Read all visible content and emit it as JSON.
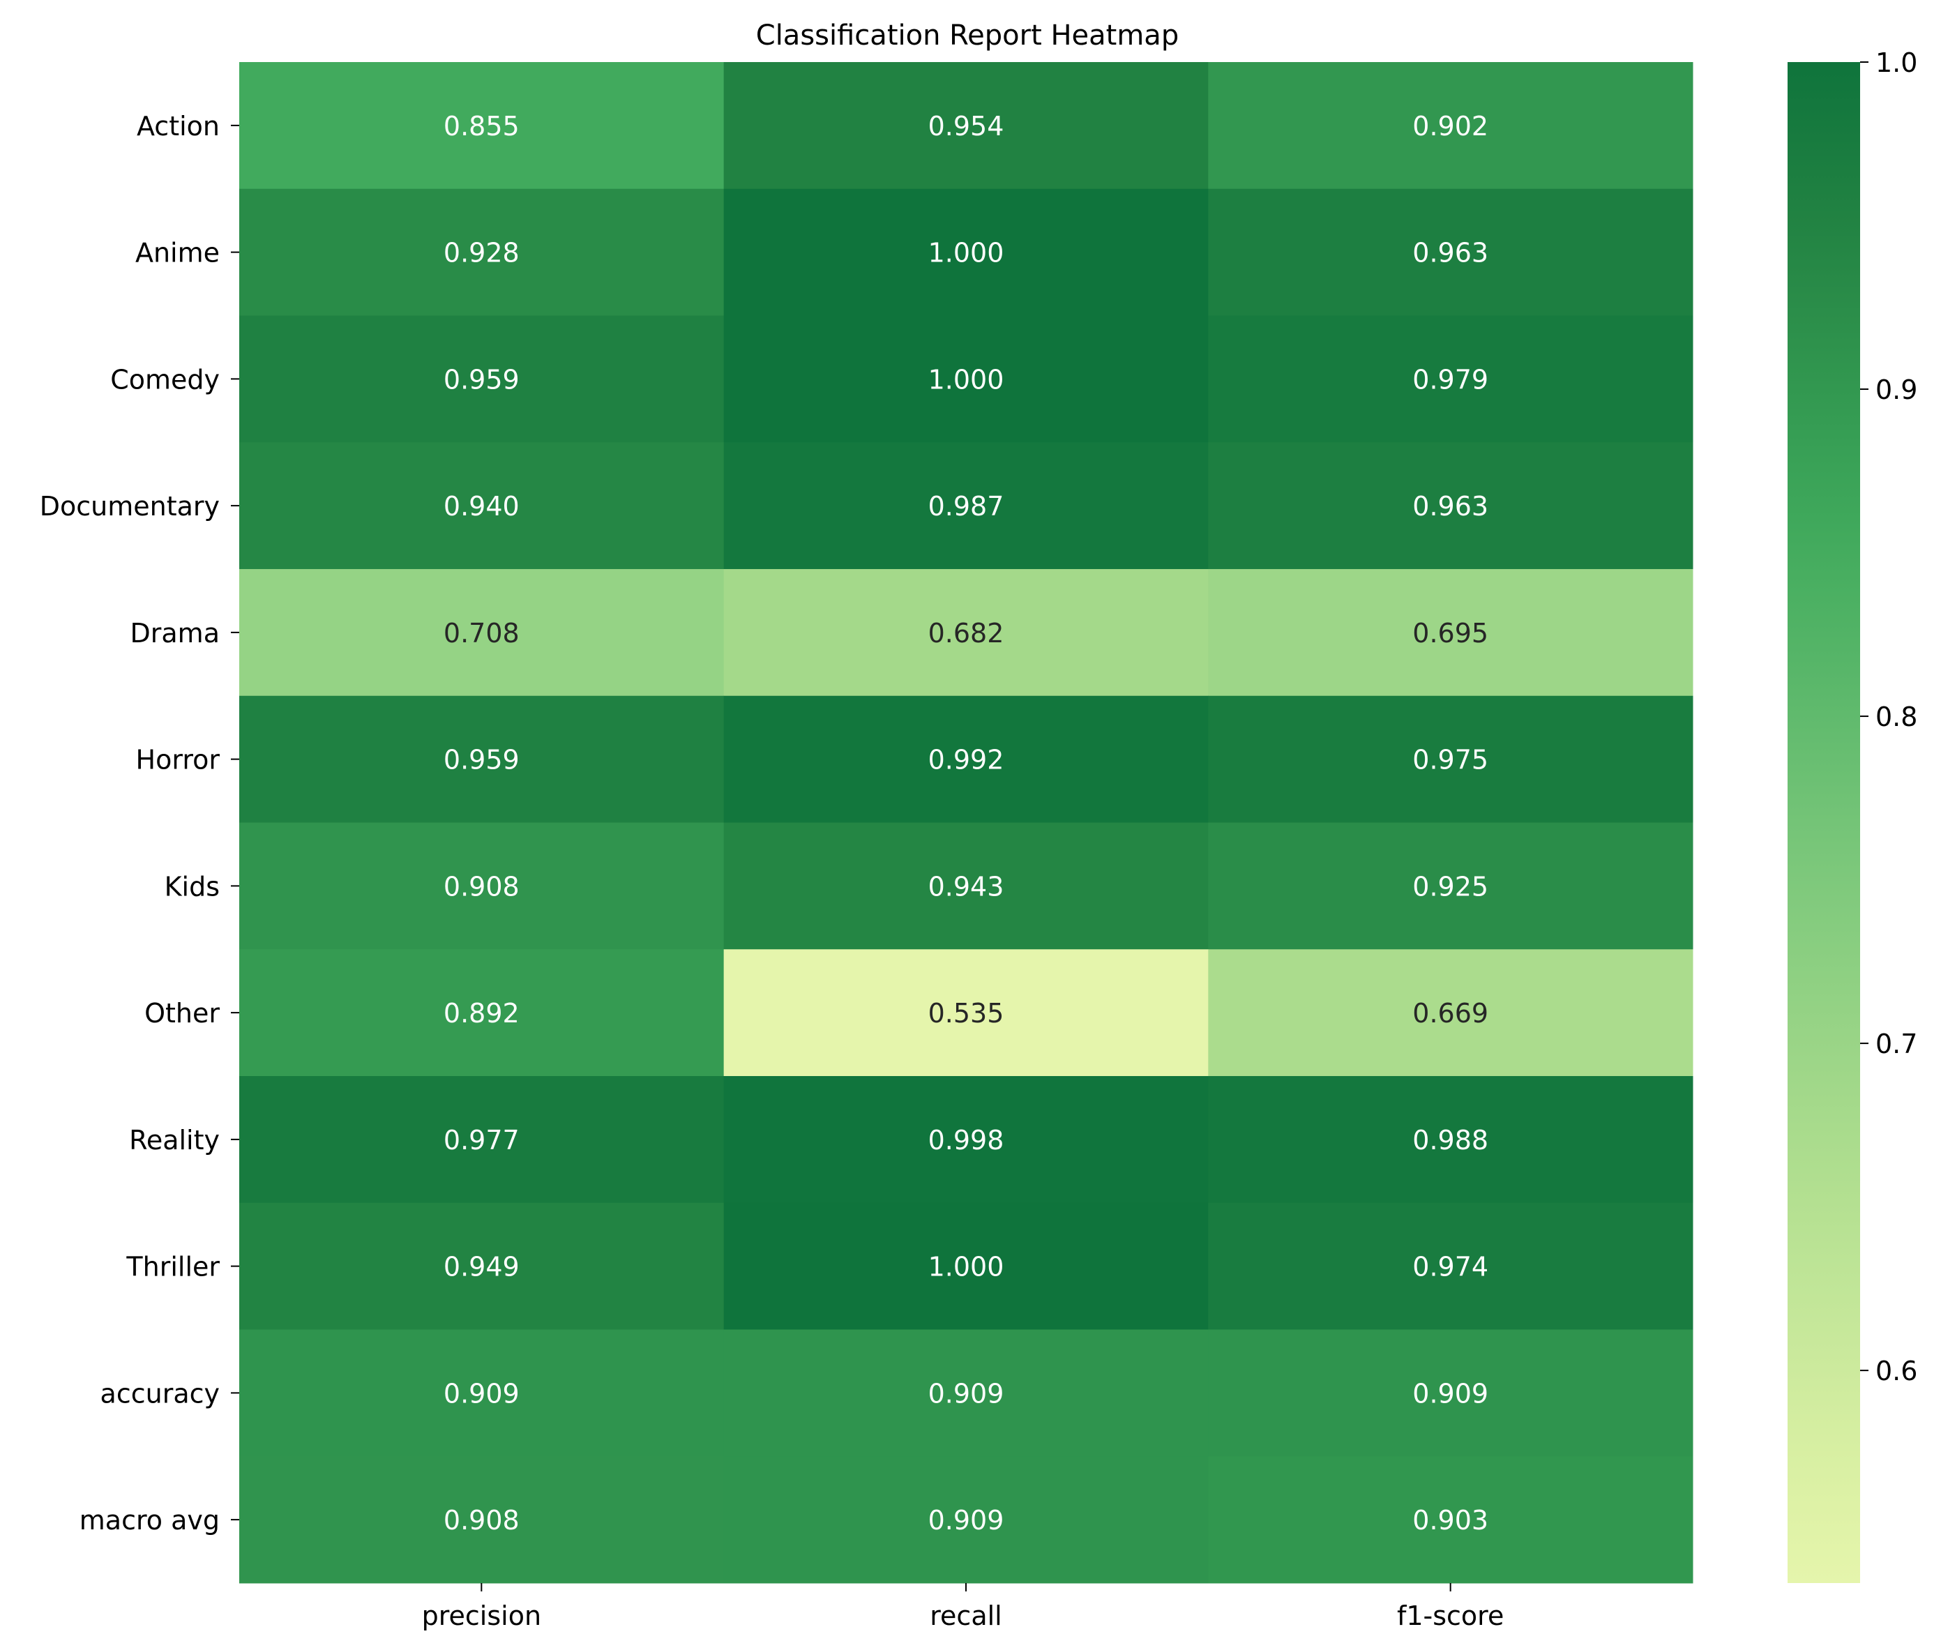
{
  "chart_data": {
    "type": "heatmap",
    "title": "Classification Report Heatmap",
    "xlabel": "",
    "ylabel": "",
    "columns": [
      "precision",
      "recall",
      "f1-score"
    ],
    "rows": [
      "Action",
      "Anime",
      "Comedy",
      "Documentary",
      "Drama",
      "Horror",
      "Kids",
      "Other",
      "Reality",
      "Thriller",
      "accuracy",
      "macro avg"
    ],
    "values": [
      [
        0.855,
        0.954,
        0.902
      ],
      [
        0.928,
        1.0,
        0.963
      ],
      [
        0.959,
        1.0,
        0.979
      ],
      [
        0.94,
        0.987,
        0.963
      ],
      [
        0.708,
        0.682,
        0.695
      ],
      [
        0.959,
        0.992,
        0.975
      ],
      [
        0.908,
        0.943,
        0.925
      ],
      [
        0.892,
        0.535,
        0.669
      ],
      [
        0.977,
        0.998,
        0.988
      ],
      [
        0.949,
        1.0,
        0.974
      ],
      [
        0.909,
        0.909,
        0.909
      ],
      [
        0.908,
        0.909,
        0.903
      ]
    ],
    "value_labels": [
      [
        "0.855",
        "0.954",
        "0.902"
      ],
      [
        "0.928",
        "1.000",
        "0.963"
      ],
      [
        "0.959",
        "1.000",
        "0.979"
      ],
      [
        "0.940",
        "0.987",
        "0.963"
      ],
      [
        "0.708",
        "0.682",
        "0.695"
      ],
      [
        "0.959",
        "0.992",
        "0.975"
      ],
      [
        "0.908",
        "0.943",
        "0.925"
      ],
      [
        "0.892",
        "0.535",
        "0.669"
      ],
      [
        "0.977",
        "0.998",
        "0.988"
      ],
      [
        "0.949",
        "1.000",
        "0.974"
      ],
      [
        "0.909",
        "0.909",
        "0.909"
      ],
      [
        "0.908",
        "0.909",
        "0.903"
      ]
    ],
    "colormap": "YlGn",
    "vmin": 0.535,
    "vmax": 1.0,
    "colorbar": {
      "ticks": [
        0.6,
        0.7,
        0.8,
        0.9,
        1.0
      ],
      "tick_labels": [
        "0.6",
        "0.7",
        "0.8",
        "0.9",
        "1.0"
      ]
    },
    "grid": false,
    "legend": "colorbar-right"
  }
}
